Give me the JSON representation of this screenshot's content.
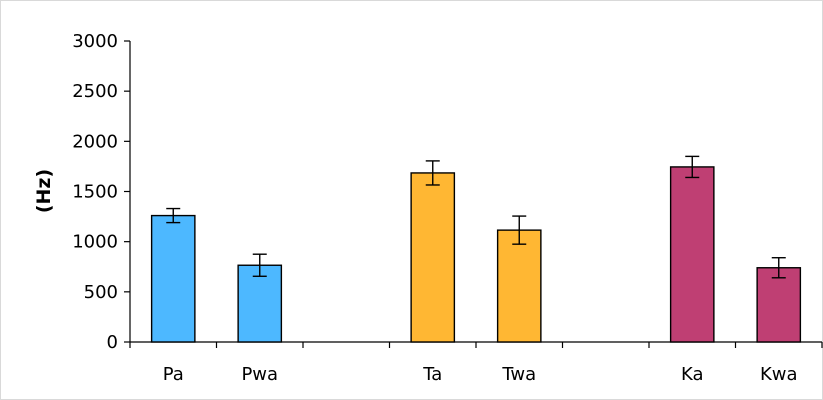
{
  "chart_data": {
    "type": "bar",
    "title": "",
    "xlabel": "",
    "ylabel": "(Hz)",
    "ylim": [
      0,
      3000
    ],
    "yticks": [
      0,
      500,
      1000,
      1500,
      2000,
      2500,
      3000
    ],
    "grid": false,
    "legend": "none",
    "slots": [
      "Pa",
      "Pwa",
      "",
      "Ta",
      "Twa",
      "",
      "Ka",
      "Kwa"
    ],
    "categories": [
      "Pa",
      "Pwa",
      "Ta",
      "Twa",
      "Ka",
      "Kwa"
    ],
    "values": [
      1260,
      765,
      1685,
      1115,
      1745,
      740
    ],
    "error": [
      70,
      110,
      120,
      140,
      105,
      100
    ],
    "colors": [
      "#4db8ff",
      "#4db8ff",
      "#ffb733",
      "#ffb733",
      "#bf3f73",
      "#bf3f73"
    ]
  }
}
